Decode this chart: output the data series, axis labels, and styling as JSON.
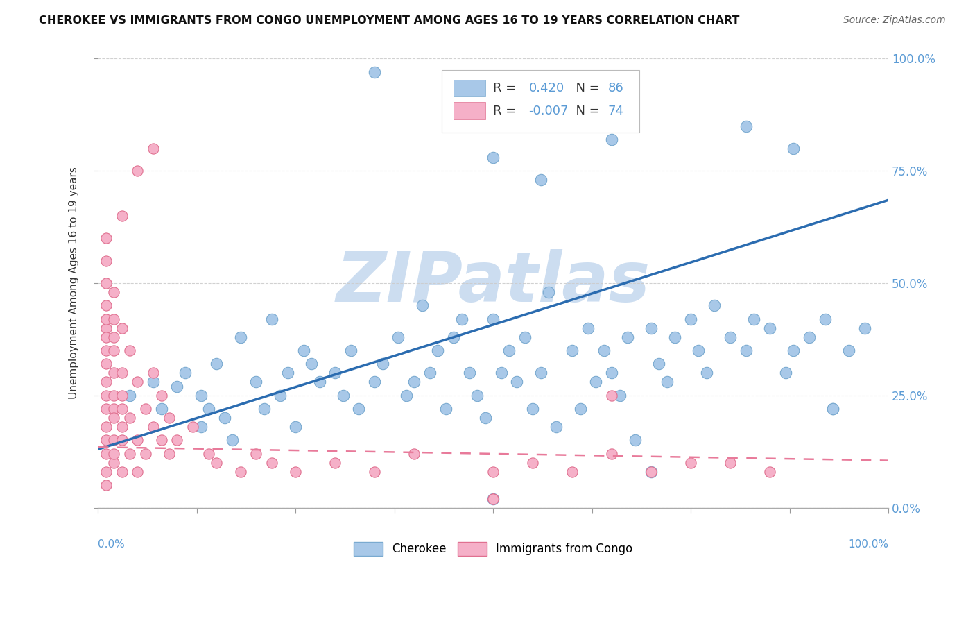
{
  "title": "CHEROKEE VS IMMIGRANTS FROM CONGO UNEMPLOYMENT AMONG AGES 16 TO 19 YEARS CORRELATION CHART",
  "source": "Source: ZipAtlas.com",
  "ylabel": "Unemployment Among Ages 16 to 19 years",
  "cherokee_color": "#a8c8e8",
  "cherokee_edge": "#7aaad0",
  "congo_color": "#f5b0c8",
  "congo_edge": "#e07090",
  "cherokee_line_color": "#2b6cb0",
  "congo_line_color": "#e87a9a",
  "cherokee_R": 0.42,
  "cherokee_N": 86,
  "congo_R": -0.007,
  "congo_N": 74,
  "watermark": "ZIPatlas",
  "watermark_color": "#ccddf0",
  "background_color": "#ffffff",
  "grid_color": "#cccccc",
  "label_color": "#5b9bd5",
  "title_color": "#111111",
  "ytick_labels": [
    "0.0%",
    "25.0%",
    "50.0%",
    "75.0%",
    "100.0%"
  ],
  "ytick_values": [
    0.0,
    0.25,
    0.5,
    0.75,
    1.0
  ],
  "xtick_values": [
    0.0,
    0.125,
    0.25,
    0.375,
    0.5,
    0.625,
    0.75,
    0.875,
    1.0
  ],
  "cherokee_line_x0": 0.0,
  "cherokee_line_y0": 0.13,
  "cherokee_line_x1": 1.0,
  "cherokee_line_y1": 0.685,
  "congo_line_x0": 0.0,
  "congo_line_y0": 0.135,
  "congo_line_x1": 1.0,
  "congo_line_y1": 0.105,
  "cherokee_x": [
    0.04,
    0.07,
    0.08,
    0.1,
    0.11,
    0.13,
    0.13,
    0.14,
    0.15,
    0.16,
    0.17,
    0.18,
    0.2,
    0.21,
    0.22,
    0.23,
    0.24,
    0.25,
    0.26,
    0.27,
    0.28,
    0.3,
    0.31,
    0.32,
    0.33,
    0.35,
    0.36,
    0.38,
    0.39,
    0.4,
    0.41,
    0.42,
    0.43,
    0.44,
    0.45,
    0.46,
    0.47,
    0.48,
    0.49,
    0.5,
    0.51,
    0.52,
    0.53,
    0.54,
    0.55,
    0.56,
    0.57,
    0.58,
    0.6,
    0.61,
    0.62,
    0.63,
    0.64,
    0.65,
    0.66,
    0.67,
    0.68,
    0.7,
    0.71,
    0.72,
    0.73,
    0.75,
    0.76,
    0.77,
    0.78,
    0.8,
    0.82,
    0.83,
    0.85,
    0.87,
    0.88,
    0.9,
    0.92,
    0.93,
    0.95,
    0.97,
    0.5,
    0.35,
    0.65,
    0.67,
    0.56,
    0.82,
    0.88,
    0.93,
    0.5,
    0.7
  ],
  "cherokee_y": [
    0.25,
    0.28,
    0.22,
    0.27,
    0.3,
    0.25,
    0.18,
    0.22,
    0.32,
    0.2,
    0.15,
    0.38,
    0.28,
    0.22,
    0.42,
    0.25,
    0.3,
    0.18,
    0.35,
    0.32,
    0.28,
    0.3,
    0.25,
    0.35,
    0.22,
    0.28,
    0.32,
    0.38,
    0.25,
    0.28,
    0.45,
    0.3,
    0.35,
    0.22,
    0.38,
    0.42,
    0.3,
    0.25,
    0.2,
    0.42,
    0.3,
    0.35,
    0.28,
    0.38,
    0.22,
    0.3,
    0.48,
    0.18,
    0.35,
    0.22,
    0.4,
    0.28,
    0.35,
    0.3,
    0.25,
    0.38,
    0.15,
    0.4,
    0.32,
    0.28,
    0.38,
    0.42,
    0.35,
    0.3,
    0.45,
    0.38,
    0.35,
    0.42,
    0.4,
    0.3,
    0.35,
    0.38,
    0.42,
    0.22,
    0.35,
    0.4,
    0.78,
    0.97,
    0.82,
    0.88,
    0.73,
    0.85,
    0.8,
    0.22,
    0.02,
    0.08
  ],
  "congo_x": [
    0.01,
    0.01,
    0.01,
    0.01,
    0.01,
    0.01,
    0.01,
    0.01,
    0.01,
    0.01,
    0.01,
    0.01,
    0.01,
    0.01,
    0.01,
    0.01,
    0.01,
    0.02,
    0.02,
    0.02,
    0.02,
    0.02,
    0.02,
    0.02,
    0.02,
    0.02,
    0.02,
    0.02,
    0.03,
    0.03,
    0.03,
    0.03,
    0.03,
    0.03,
    0.03,
    0.04,
    0.04,
    0.04,
    0.05,
    0.05,
    0.05,
    0.06,
    0.06,
    0.07,
    0.07,
    0.08,
    0.08,
    0.09,
    0.09,
    0.1,
    0.12,
    0.14,
    0.15,
    0.18,
    0.2,
    0.22,
    0.25,
    0.3,
    0.35,
    0.4,
    0.5,
    0.55,
    0.6,
    0.65,
    0.7,
    0.8,
    0.85,
    0.5,
    0.75,
    0.65,
    0.03,
    0.05,
    0.07,
    0.5
  ],
  "congo_y": [
    0.4,
    0.35,
    0.28,
    0.22,
    0.18,
    0.15,
    0.12,
    0.08,
    0.32,
    0.25,
    0.45,
    0.5,
    0.38,
    0.55,
    0.42,
    0.05,
    0.6,
    0.3,
    0.35,
    0.22,
    0.42,
    0.15,
    0.48,
    0.1,
    0.25,
    0.38,
    0.2,
    0.12,
    0.3,
    0.22,
    0.15,
    0.4,
    0.08,
    0.25,
    0.18,
    0.35,
    0.2,
    0.12,
    0.28,
    0.15,
    0.08,
    0.22,
    0.12,
    0.18,
    0.3,
    0.25,
    0.15,
    0.2,
    0.12,
    0.15,
    0.18,
    0.12,
    0.1,
    0.08,
    0.12,
    0.1,
    0.08,
    0.1,
    0.08,
    0.12,
    0.08,
    0.1,
    0.08,
    0.12,
    0.08,
    0.1,
    0.08,
    0.02,
    0.1,
    0.25,
    0.65,
    0.75,
    0.8,
    0.02
  ]
}
